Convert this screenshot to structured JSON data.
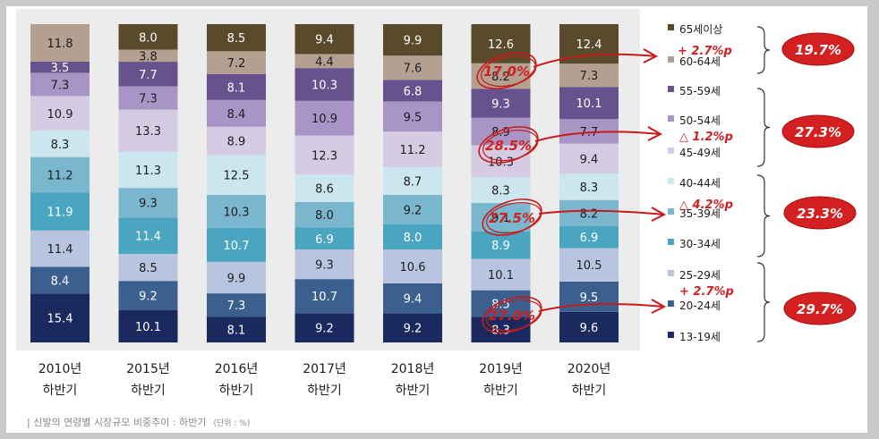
{
  "chart_data": {
    "type": "bar",
    "stacked": true,
    "categories": [
      [
        "2010년",
        "하반기"
      ],
      [
        "2015년",
        "하반기"
      ],
      [
        "2016년",
        "하반기"
      ],
      [
        "2017년",
        "하반기"
      ],
      [
        "2018년",
        "하반기"
      ],
      [
        "2019년",
        "하반기"
      ],
      [
        "2020년",
        "하반기"
      ]
    ],
    "series": [
      {
        "name": "13-19세",
        "color": "#1b2a5e",
        "values": [
          15.4,
          10.1,
          8.1,
          9.2,
          9.2,
          8.3,
          9.6
        ]
      },
      {
        "name": "20-24세",
        "color": "#3b5f8f",
        "values": [
          8.4,
          9.2,
          7.3,
          10.7,
          9.4,
          8.5,
          9.5
        ]
      },
      {
        "name": "25-29세",
        "color": "#b9c5e0",
        "values": [
          11.4,
          8.5,
          9.9,
          9.3,
          10.6,
          10.1,
          10.5
        ]
      },
      {
        "name": "30-34세",
        "color": "#4aa5c0",
        "values": [
          11.9,
          11.4,
          10.7,
          6.9,
          8.0,
          8.9,
          6.9
        ]
      },
      {
        "name": "35-39세",
        "color": "#7ab7ce",
        "values": [
          11.2,
          9.3,
          10.3,
          8.0,
          9.2,
          9.1,
          8.2
        ]
      },
      {
        "name": "40-44세",
        "color": "#cbe6ee",
        "values": [
          8.3,
          11.3,
          12.5,
          8.6,
          8.7,
          8.3,
          8.3
        ]
      },
      {
        "name": "45-49세",
        "color": "#d5cbe3",
        "values": [
          10.9,
          13.3,
          8.9,
          12.3,
          11.2,
          10.3,
          9.4
        ]
      },
      {
        "name": "50-54세",
        "color": "#a895c6",
        "values": [
          7.3,
          7.3,
          8.4,
          10.9,
          9.5,
          8.9,
          7.7
        ]
      },
      {
        "name": "55-59세",
        "color": "#66528c",
        "values": [
          3.5,
          7.7,
          8.1,
          10.3,
          6.8,
          9.3,
          10.1
        ]
      },
      {
        "name": "60-64세",
        "color": "#b3a091",
        "values": [
          11.8,
          3.8,
          7.2,
          4.4,
          7.6,
          8.2,
          7.3
        ]
      },
      {
        "name": "65세이상",
        "color": "#5a4a2c",
        "values": [
          0.0,
          8.0,
          8.5,
          9.4,
          9.9,
          12.6,
          12.4
        ]
      }
    ],
    "caption": {
      "text": "| 신발의 연령별 시장규모 비중추이 : 하반기",
      "unit": "(단위 : %)"
    },
    "annotations": {
      "circled": [
        "17.0%",
        "28.5%",
        "27.5%",
        "27.0%"
      ],
      "changes": [
        "+ 2.7%p",
        "△ 1.2%p",
        "△ 4.2%p",
        "+ 2.7%p"
      ],
      "group_totals": [
        "19.7%",
        "27.3%",
        "23.3%",
        "29.7%"
      ]
    },
    "legend_position": "right"
  }
}
